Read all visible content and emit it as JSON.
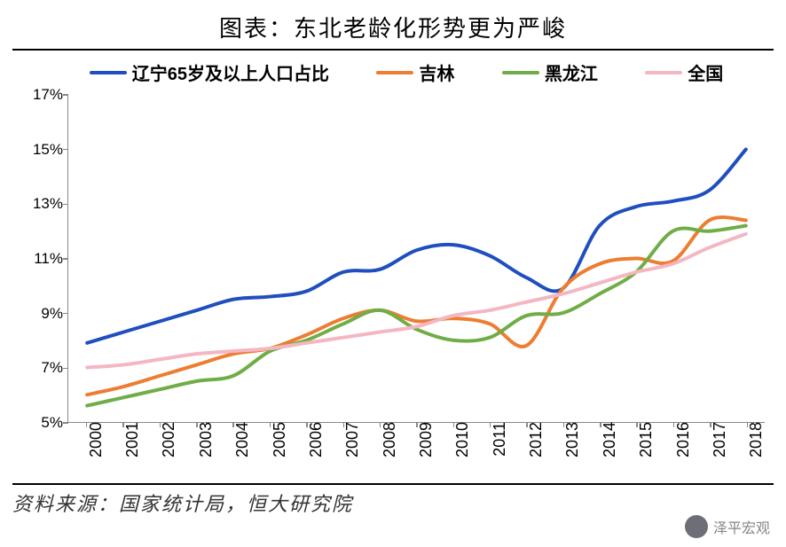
{
  "title": "图表：东北老龄化形势更为严峻",
  "source": "资料来源：国家统计局，恒大研究院",
  "watermark": "泽平宏观",
  "chart": {
    "type": "line",
    "background_color": "#ffffff",
    "axis_color": "#888888",
    "title_fontsize": 26,
    "label_fontsize": 18,
    "ylim": [
      5,
      17
    ],
    "ytick_step": 2,
    "y_suffix": "%",
    "years": [
      2000,
      2001,
      2002,
      2003,
      2004,
      2005,
      2006,
      2007,
      2008,
      2009,
      2010,
      2011,
      2012,
      2013,
      2014,
      2015,
      2016,
      2017,
      2018
    ],
    "line_width": 4,
    "legend": {
      "position": "top",
      "font_weight": "bold",
      "fontsize": 20
    },
    "series": [
      {
        "key": "liaoning",
        "label": "辽宁65岁及以上人口占比",
        "color": "#1f4fbf",
        "values": [
          7.9,
          8.3,
          8.7,
          9.1,
          9.5,
          9.6,
          9.8,
          10.5,
          10.6,
          11.3,
          11.5,
          11.1,
          10.3,
          9.9,
          12.2,
          12.9,
          13.1,
          13.5,
          15.0
        ]
      },
      {
        "key": "jilin",
        "label": "吉林",
        "color": "#ed7d31",
        "values": [
          6.0,
          6.3,
          6.7,
          7.1,
          7.5,
          7.7,
          8.2,
          8.8,
          9.1,
          8.7,
          8.8,
          8.6,
          7.8,
          9.9,
          10.8,
          11.0,
          10.9,
          12.4,
          12.4
        ]
      },
      {
        "key": "heilongjiang",
        "label": "黑龙江",
        "color": "#70ad47",
        "values": [
          5.6,
          5.9,
          6.2,
          6.5,
          6.7,
          7.6,
          8.0,
          8.6,
          9.1,
          8.4,
          8.0,
          8.1,
          8.9,
          9.0,
          9.7,
          10.5,
          12.0,
          12.0,
          12.2
        ]
      },
      {
        "key": "national",
        "label": "全国",
        "color": "#f4b6c2",
        "values": [
          7.0,
          7.1,
          7.3,
          7.5,
          7.6,
          7.7,
          7.9,
          8.1,
          8.3,
          8.5,
          8.9,
          9.1,
          9.4,
          9.7,
          10.1,
          10.5,
          10.8,
          11.4,
          11.9
        ]
      }
    ]
  }
}
